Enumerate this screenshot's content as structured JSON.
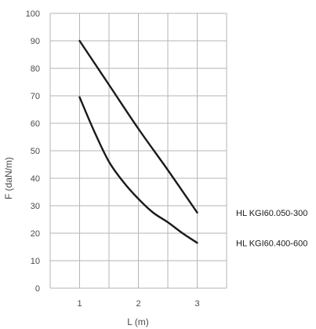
{
  "chart_data": {
    "type": "line",
    "title": "",
    "xlabel": "L (m)",
    "ylabel": "F (daN/m)",
    "xlim": [
      0.5,
      3.5
    ],
    "ylim": [
      0,
      100
    ],
    "x_ticks": [
      1,
      2,
      3
    ],
    "y_ticks": [
      0,
      10,
      20,
      30,
      40,
      50,
      60,
      70,
      80,
      90,
      100
    ],
    "grid": true,
    "legend": "right",
    "series": [
      {
        "name": "HL KGI60.050-300",
        "color": "#1a1a1a",
        "x": [
          1,
          1.5,
          2,
          2.5,
          3
        ],
        "y": [
          90,
          74,
          58,
          43,
          27.5
        ]
      },
      {
        "name": "HL KGI60.400-600",
        "color": "#1a1a1a",
        "x": [
          1,
          1.25,
          1.5,
          1.75,
          2,
          2.25,
          2.5,
          2.75,
          3
        ],
        "y": [
          69.5,
          57,
          46,
          38.5,
          32.5,
          27.5,
          24,
          20,
          16.5
        ]
      }
    ],
    "grid_color": "#b5b5b5",
    "axis_text_color": "#4a4a4a"
  }
}
